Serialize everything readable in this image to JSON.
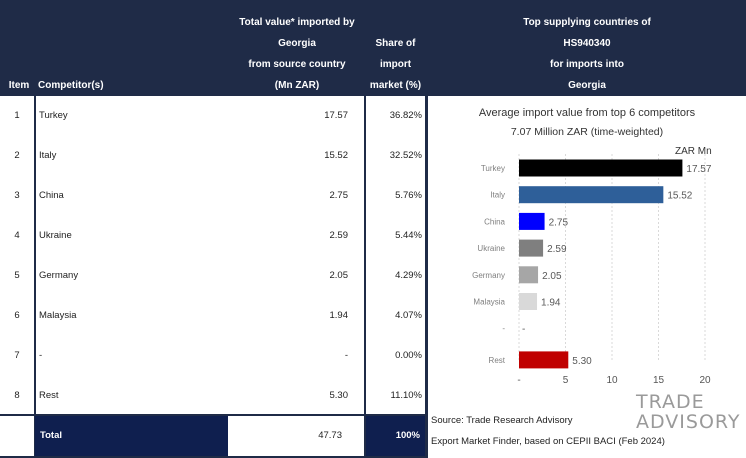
{
  "header": {
    "item": "Item",
    "competitor": "Competitor(s)",
    "value_lines": [
      "Total value* imported by",
      "Georgia",
      "from source country",
      "(Mn ZAR)"
    ],
    "share_lines": [
      "Share of",
      "import",
      "market (%)"
    ],
    "top_lines": [
      "Top supplying countries of",
      "HS940340",
      "for imports into",
      "Georgia"
    ]
  },
  "rows": [
    {
      "item": "1",
      "competitor": "Turkey",
      "value": "17.57",
      "share": "36.82%"
    },
    {
      "item": "2",
      "competitor": "Italy",
      "value": "15.52",
      "share": "32.52%"
    },
    {
      "item": "3",
      "competitor": "China",
      "value": "2.75",
      "share": "5.76%"
    },
    {
      "item": "4",
      "competitor": "Ukraine",
      "value": "2.59",
      "share": "5.44%"
    },
    {
      "item": "5",
      "competitor": "Germany",
      "value": "2.05",
      "share": "4.29%"
    },
    {
      "item": "6",
      "competitor": "Malaysia",
      "value": "1.94",
      "share": "4.07%"
    },
    {
      "item": "7",
      "competitor": "-",
      "value": "-",
      "share": "0.00%"
    },
    {
      "item": "8",
      "competitor": "Rest",
      "value": "5.30",
      "share": "11.10%"
    }
  ],
  "total": {
    "label": "Total",
    "value": "47.73",
    "share": "100%"
  },
  "source": {
    "line1": "Source: Trade Research Advisory",
    "line2": "Export Market Finder, based on CEPII BACI (Feb 2024)"
  },
  "logo": {
    "line1": "TRADE",
    "line2": "ADVISORY"
  },
  "chart_data": {
    "type": "bar",
    "orientation": "horizontal",
    "title": "Average import value from top 6 competitors",
    "subtitle": "7.07 Million ZAR (time-weighted)",
    "unit_label": "ZAR Mn",
    "categories": [
      "Turkey",
      "Italy",
      "China",
      "Ukraine",
      "Germany",
      "Malaysia",
      "-",
      "Rest"
    ],
    "values": [
      17.57,
      15.52,
      2.75,
      2.59,
      2.05,
      1.94,
      null,
      5.3
    ],
    "value_labels": [
      "17.57",
      "15.52",
      "2.75",
      "2.59",
      "2.05",
      "1.94",
      "-",
      "5.30"
    ],
    "colors": [
      "#000000",
      "#2e5f99",
      "#0000ff",
      "#7f7f7f",
      "#a6a6a6",
      "#d9d9d9",
      "#ffffff",
      "#c00000"
    ],
    "xticks": [
      "-",
      "5",
      "10",
      "15",
      "20"
    ],
    "xtick_values": [
      0,
      5,
      10,
      15,
      20
    ],
    "xlim": [
      0,
      20
    ],
    "grid": true
  }
}
